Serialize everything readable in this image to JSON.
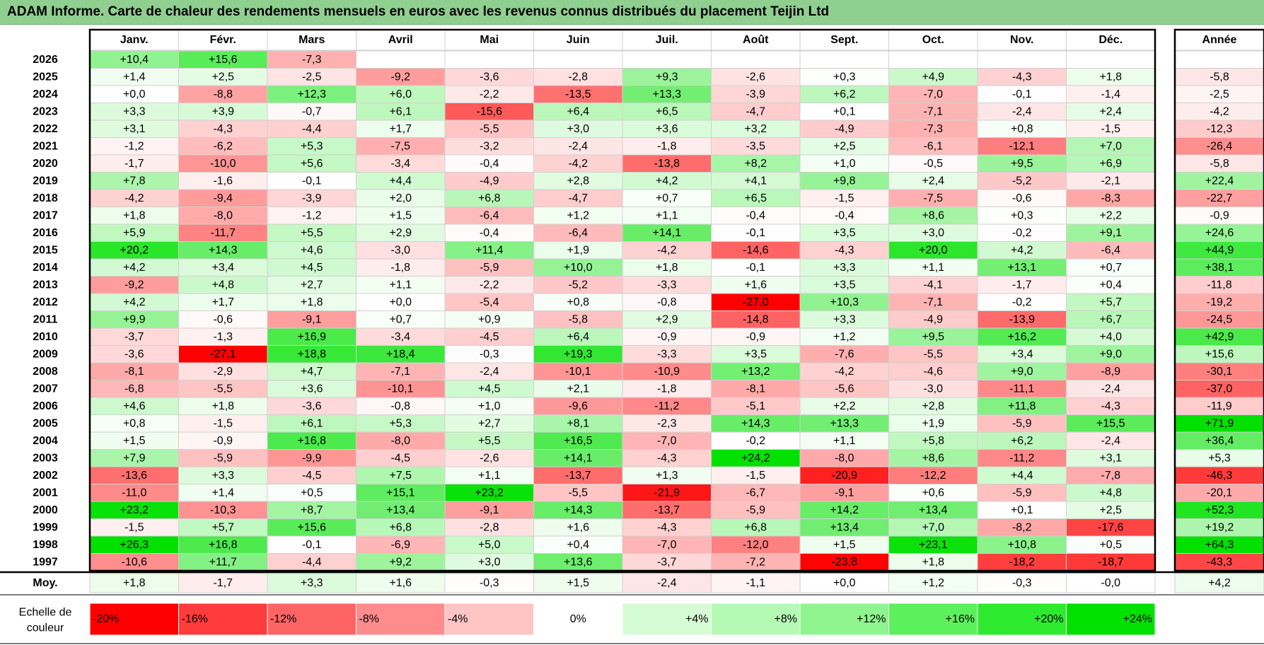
{
  "title": "ADAM Informe. Carte de chaleur des rendements mensuels en euros avec les revenus connus distribués du placement Teijin Ltd",
  "chart_data": {
    "type": "heatmap",
    "title": "ADAM Informe. Carte de chaleur des rendements mensuels en euros avec les revenus connus distribués du placement Teijin Ltd",
    "months": [
      "Janv.",
      "Févr.",
      "Mars",
      "Avril",
      "Mai",
      "Juin",
      "Juil.",
      "Août",
      "Sept.",
      "Oct.",
      "Nov.",
      "Déc."
    ],
    "year_header": "Année",
    "rows": [
      {
        "year": "2026",
        "values": [
          "+10,4",
          "+15,6",
          "-7,3",
          "",
          "",
          "",
          "",
          "",
          "",
          "",
          "",
          ""
        ],
        "annual": ""
      },
      {
        "year": "2025",
        "values": [
          "+1,4",
          "+2,5",
          "-2,5",
          "-9,2",
          "-3,6",
          "-2,8",
          "+9,3",
          "-2,6",
          "+0,3",
          "+4,9",
          "-4,3",
          "+1,8"
        ],
        "annual": "-5,8"
      },
      {
        "year": "2024",
        "values": [
          "+0,0",
          "-8,8",
          "+12,3",
          "+6,0",
          "-2,2",
          "-13,5",
          "+13,3",
          "-3,9",
          "+6,2",
          "-7,0",
          "-0,1",
          "-1,4"
        ],
        "annual": "-2,5"
      },
      {
        "year": "2023",
        "values": [
          "+3,3",
          "+3,9",
          "-0,7",
          "+6,1",
          "-15,6",
          "+6,4",
          "+6,5",
          "-4,7",
          "+0,1",
          "-7,1",
          "-2,4",
          "+2,4"
        ],
        "annual": "-4,2"
      },
      {
        "year": "2022",
        "values": [
          "+3,1",
          "-4,3",
          "-4,4",
          "+1,7",
          "-5,5",
          "+3,0",
          "+3,6",
          "+3,2",
          "-4,9",
          "-7,3",
          "+0,8",
          "-1,5"
        ],
        "annual": "-12,3"
      },
      {
        "year": "2021",
        "values": [
          "-1,2",
          "-6,2",
          "+5,3",
          "-7,5",
          "-3,2",
          "-2,4",
          "-1,8",
          "-3,5",
          "+2,5",
          "-6,1",
          "-12,1",
          "+7,0"
        ],
        "annual": "-26,4"
      },
      {
        "year": "2020",
        "values": [
          "-1,7",
          "-10,0",
          "+5,6",
          "-3,4",
          "-0,4",
          "-4,2",
          "-13,8",
          "+8,2",
          "+1,0",
          "-0,5",
          "+9,5",
          "+6,9"
        ],
        "annual": "-5,8"
      },
      {
        "year": "2019",
        "values": [
          "+7,8",
          "-1,6",
          "-0,1",
          "+4,4",
          "-4,9",
          "+2,8",
          "+4,2",
          "+4,1",
          "+9,8",
          "+2,4",
          "-5,2",
          "-2,1"
        ],
        "annual": "+22,4"
      },
      {
        "year": "2018",
        "values": [
          "-4,2",
          "-9,4",
          "-3,9",
          "+2,0",
          "+6,8",
          "-4,7",
          "+0,7",
          "+6,5",
          "-1,5",
          "-7,5",
          "-0,6",
          "-8,3"
        ],
        "annual": "-22,7"
      },
      {
        "year": "2017",
        "values": [
          "+1,8",
          "-8,0",
          "-1,2",
          "+1,5",
          "-6,4",
          "+1,2",
          "+1,1",
          "-0,4",
          "-0,4",
          "+8,6",
          "+0,3",
          "+2,2"
        ],
        "annual": "-0,9"
      },
      {
        "year": "2016",
        "values": [
          "+5,9",
          "-11,7",
          "+5,5",
          "+2,9",
          "-0,4",
          "-6,4",
          "+14,1",
          "-0,1",
          "+3,5",
          "+3,0",
          "-0,2",
          "+9,1"
        ],
        "annual": "+24,6"
      },
      {
        "year": "2015",
        "values": [
          "+20,2",
          "+14,3",
          "+4,6",
          "-3,0",
          "+11,4",
          "+1,9",
          "-4,2",
          "-14,6",
          "-4,3",
          "+20,0",
          "+4,2",
          "-6,4"
        ],
        "annual": "+44,9"
      },
      {
        "year": "2014",
        "values": [
          "+4,2",
          "+3,4",
          "+4,5",
          "-1,8",
          "-5,9",
          "+10,0",
          "+1,8",
          "-0,1",
          "+3,3",
          "+1,1",
          "+13,1",
          "+0,7"
        ],
        "annual": "+38,1"
      },
      {
        "year": "2013",
        "values": [
          "-9,2",
          "+4,8",
          "+2,7",
          "+1,1",
          "-2,2",
          "-5,2",
          "-3,3",
          "+1,6",
          "+3,5",
          "-4,1",
          "-1,7",
          "+0,4"
        ],
        "annual": "-11,8"
      },
      {
        "year": "2012",
        "values": [
          "+4,2",
          "+1,7",
          "+1,8",
          "+0,0",
          "-5,4",
          "+0,8",
          "-0,8",
          "-27,0",
          "+10,3",
          "-7,1",
          "-0,2",
          "+5,7"
        ],
        "annual": "-19,2"
      },
      {
        "year": "2011",
        "values": [
          "+9,9",
          "-0,6",
          "-9,1",
          "+0,7",
          "+0,9",
          "-5,8",
          "+2,9",
          "-14,8",
          "+3,3",
          "-4,9",
          "-13,9",
          "+6,7"
        ],
        "annual": "-24,5"
      },
      {
        "year": "2010",
        "values": [
          "-3,7",
          "-1,3",
          "+16,9",
          "-3,4",
          "-4,5",
          "+6,4",
          "-0,9",
          "-0,9",
          "+1,2",
          "+9,5",
          "+16,2",
          "+4,0"
        ],
        "annual": "+42,9"
      },
      {
        "year": "2009",
        "values": [
          "-3,6",
          "-27,1",
          "+18,8",
          "+18,4",
          "-0,3",
          "+19,3",
          "-3,3",
          "+3,5",
          "-7,6",
          "-5,5",
          "+3,4",
          "+9,0"
        ],
        "annual": "+15,6"
      },
      {
        "year": "2008",
        "values": [
          "-8,1",
          "-2,9",
          "+4,7",
          "-7,1",
          "-2,4",
          "-10,1",
          "-10,9",
          "+13,2",
          "-4,2",
          "-4,6",
          "+9,0",
          "-8,9"
        ],
        "annual": "-30,1"
      },
      {
        "year": "2007",
        "values": [
          "-6,8",
          "-5,5",
          "+3,6",
          "-10,1",
          "+4,5",
          "+2,1",
          "-1,8",
          "-8,1",
          "-5,6",
          "-3,0",
          "-11,1",
          "-2,4"
        ],
        "annual": "-37,0"
      },
      {
        "year": "2006",
        "values": [
          "+4,6",
          "+1,8",
          "-3,6",
          "-0,8",
          "+1,0",
          "-9,6",
          "-11,2",
          "-5,1",
          "+2,2",
          "+2,8",
          "+11,8",
          "-4,3"
        ],
        "annual": "-11,9"
      },
      {
        "year": "2005",
        "values": [
          "+0,8",
          "-1,5",
          "+6,1",
          "+5,3",
          "+2,7",
          "+8,1",
          "-2,3",
          "+14,3",
          "+13,3",
          "+1,9",
          "-5,9",
          "+15,5"
        ],
        "annual": "+71,9"
      },
      {
        "year": "2004",
        "values": [
          "+1,5",
          "-0,9",
          "+16,8",
          "-8,0",
          "+5,5",
          "+16,5",
          "-7,0",
          "-0,2",
          "+1,1",
          "+5,8",
          "+6,2",
          "-2,4"
        ],
        "annual": "+36,4"
      },
      {
        "year": "2003",
        "values": [
          "+7,9",
          "-5,9",
          "-9,9",
          "-4,5",
          "-2,6",
          "+14,1",
          "-4,3",
          "+24,2",
          "-8,0",
          "+8,6",
          "-11,2",
          "+3,1"
        ],
        "annual": "+5,3"
      },
      {
        "year": "2002",
        "values": [
          "-13,6",
          "+3,3",
          "-4,5",
          "+7,5",
          "+1,1",
          "-13,7",
          "+1,3",
          "-1,5",
          "-20,9",
          "-12,2",
          "+4,4",
          "-7,8"
        ],
        "annual": "-46,3"
      },
      {
        "year": "2001",
        "values": [
          "-11,0",
          "+1,4",
          "+0,5",
          "+15,1",
          "+23,2",
          "-5,5",
          "-21,9",
          "-6,7",
          "-9,1",
          "+0,6",
          "-5,9",
          "+4,8"
        ],
        "annual": "-20,1"
      },
      {
        "year": "2000",
        "values": [
          "+23,2",
          "-10,3",
          "+8,7",
          "+13,4",
          "-9,1",
          "+14,3",
          "-13,7",
          "-5,9",
          "+14,2",
          "+13,4",
          "+0,1",
          "+2,5"
        ],
        "annual": "+52,3"
      },
      {
        "year": "1999",
        "values": [
          "-1,5",
          "+5,7",
          "+15,6",
          "+6,8",
          "-2,8",
          "+1,6",
          "-4,3",
          "+6,8",
          "+13,4",
          "+7,0",
          "-8,2",
          "-17,6"
        ],
        "annual": "+19,2"
      },
      {
        "year": "1998",
        "values": [
          "+26,3",
          "+16,8",
          "-0,1",
          "-6,9",
          "+5,0",
          "+0,4",
          "-7,0",
          "-12,0",
          "+1,5",
          "+23,1",
          "+10,8",
          "+0,5"
        ],
        "annual": "+64,3"
      },
      {
        "year": "1997",
        "values": [
          "-10,6",
          "+11,7",
          "-4,4",
          "+9,2",
          "+3,0",
          "+13,6",
          "-3,7",
          "-7,2",
          "-23,8",
          "+1,8",
          "-18,2",
          "-18,7"
        ],
        "annual": "-43,3"
      }
    ],
    "average": {
      "label": "Moy.",
      "values": [
        "+1,8",
        "-1,7",
        "+3,3",
        "+1,6",
        "-0,3",
        "+1,5",
        "-2,4",
        "-1,1",
        "+0,0",
        "+1,2",
        "-0,3",
        "-0,0"
      ],
      "annual": "+4,2"
    },
    "scale": {
      "label_line1": "Echelle de",
      "label_line2": "couleur",
      "steps": [
        {
          "label": "-20%",
          "value": -20,
          "color": "#ff0000"
        },
        {
          "label": "-16%",
          "value": -16,
          "color": "#ff3b3b"
        },
        {
          "label": "-12%",
          "value": -12,
          "color": "#ff6464"
        },
        {
          "label": "-8%",
          "value": -8,
          "color": "#ff8c8c"
        },
        {
          "label": "-4%",
          "value": -4,
          "color": "#ffc4c4"
        },
        {
          "label": "0%",
          "value": 0,
          "color": "#ffffff"
        },
        {
          "label": "+4%",
          "value": 4,
          "color": "#d6fcd6"
        },
        {
          "label": "+8%",
          "value": 8,
          "color": "#b4fab4"
        },
        {
          "label": "+12%",
          "value": 12,
          "color": "#8ff58f"
        },
        {
          "label": "+16%",
          "value": 16,
          "color": "#5cf05c"
        },
        {
          "label": "+20%",
          "value": 20,
          "color": "#2eea2e"
        },
        {
          "label": "+24%",
          "value": 24,
          "color": "#00e100"
        }
      ]
    }
  },
  "colors": {
    "title_bg": "#8fcf8f",
    "negative_max": "#ff0000",
    "positive_max": "#00e100",
    "grid": "#d0d0d0",
    "border": "#000000"
  }
}
